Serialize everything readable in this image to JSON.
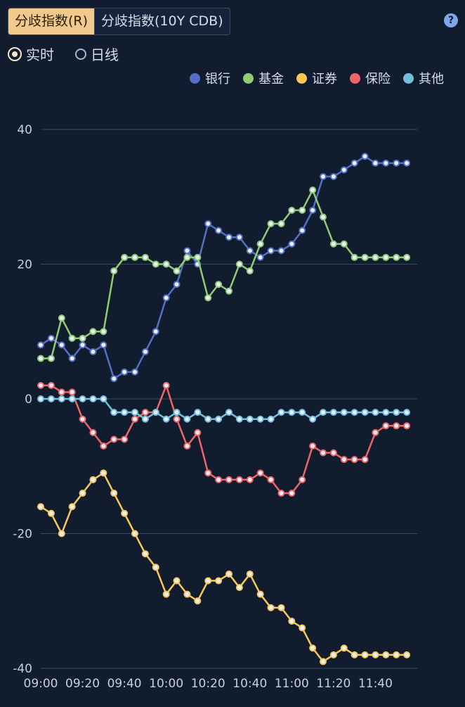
{
  "tabs": [
    {
      "label": "分歧指数(R)",
      "active": true
    },
    {
      "label": "分歧指数(10Y CDB)",
      "active": false
    }
  ],
  "help_icon": "?",
  "radios": [
    {
      "label": "实时",
      "checked": true
    },
    {
      "label": "日线",
      "checked": false
    }
  ],
  "chart_data": {
    "type": "line",
    "x": [
      "09:00",
      "09:05",
      "09:10",
      "09:15",
      "09:20",
      "09:25",
      "09:30",
      "09:35",
      "09:40",
      "09:45",
      "09:50",
      "09:55",
      "10:00",
      "10:05",
      "10:10",
      "10:15",
      "10:20",
      "10:25",
      "10:30",
      "10:35",
      "10:40",
      "10:45",
      "10:50",
      "10:55",
      "11:00",
      "11:05",
      "11:10",
      "11:15",
      "11:20",
      "11:25",
      "11:30",
      "11:35",
      "11:40",
      "11:45",
      "11:50",
      "11:55",
      "12:00"
    ],
    "x_ticks": [
      "09:00",
      "09:20",
      "09:40",
      "10:00",
      "10:20",
      "10:40",
      "11:00",
      "11:20",
      "11:40"
    ],
    "y_ticks": [
      40,
      20,
      0,
      -20,
      -40
    ],
    "ylim": [
      -40,
      40
    ],
    "grid": true,
    "legend_position": "top-right",
    "series": [
      {
        "name": "银行",
        "color": "#5470c6",
        "values": [
          8,
          9,
          8,
          6,
          8,
          7,
          8,
          3,
          4,
          4,
          7,
          10,
          15,
          17,
          22,
          20,
          26,
          25,
          24,
          24,
          22,
          21,
          22,
          22,
          23,
          25,
          28,
          33,
          33,
          34,
          35,
          36,
          35,
          35,
          35,
          35,
          null
        ]
      },
      {
        "name": "基金",
        "color": "#91cc75",
        "values": [
          6,
          6,
          12,
          9,
          9,
          10,
          10,
          19,
          21,
          21,
          21,
          20,
          20,
          19,
          21,
          21,
          15,
          17,
          16,
          20,
          19,
          23,
          26,
          26,
          28,
          28,
          31,
          27,
          23,
          23,
          21,
          21,
          21,
          21,
          21,
          21,
          null
        ]
      },
      {
        "name": "证券",
        "color": "#fac858",
        "values": [
          -16,
          -17,
          -20,
          -16,
          -14,
          -12,
          -11,
          -14,
          -17,
          -20,
          -23,
          -25,
          -29,
          -27,
          -29,
          -30,
          -27,
          -27,
          -26,
          -28,
          -26,
          -29,
          -31,
          -31,
          -33,
          -34,
          -37,
          -39,
          -38,
          -37,
          -38,
          -38,
          -38,
          -38,
          -38,
          -38,
          null
        ]
      },
      {
        "name": "保险",
        "color": "#ee6666",
        "values": [
          2,
          2,
          1,
          1,
          -3,
          -5,
          -7,
          -6,
          -6,
          -3,
          -2,
          -2,
          2,
          -3,
          -7,
          -5,
          -11,
          -12,
          -12,
          -12,
          -12,
          -11,
          -12,
          -14,
          -14,
          -12,
          -7,
          -8,
          -8,
          -9,
          -9,
          -9,
          -5,
          -4,
          -4,
          -4,
          null
        ]
      },
      {
        "name": "其他",
        "color": "#73c0de",
        "values": [
          0,
          0,
          0,
          0,
          0,
          0,
          0,
          -2,
          -2,
          -2,
          -3,
          -2,
          -3,
          -2,
          -3,
          -2,
          -3,
          -3,
          -2,
          -3,
          -3,
          -3,
          -3,
          -2,
          -2,
          -2,
          -3,
          -2,
          -2,
          -2,
          -2,
          -2,
          -2,
          -2,
          -2,
          -2,
          null
        ]
      }
    ]
  }
}
